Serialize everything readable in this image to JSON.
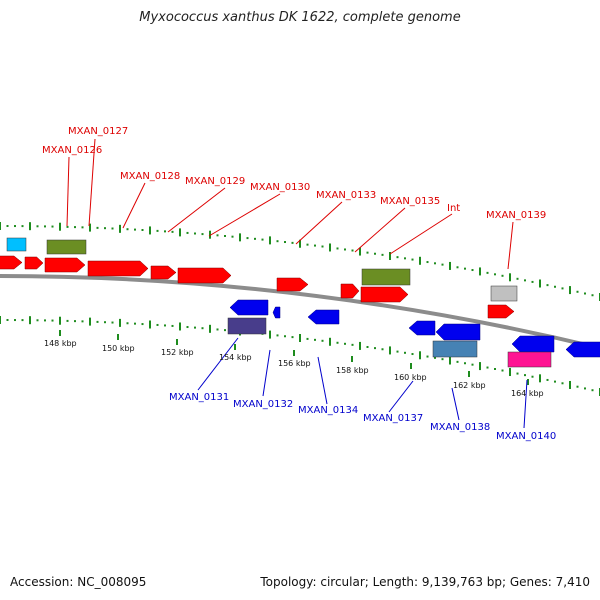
{
  "title": "Myxococcus xanthus DK 1622, complete genome",
  "footer": {
    "accession": "Accession: NC_008095",
    "summary": "Topology: circular; Length: 9,139,763 bp; Genes: 7,410"
  },
  "colors": {
    "forward_gene": "#ff0000",
    "reverse_gene": "#0000ee",
    "forward_label": "#dd0000",
    "reverse_label": "#0000cc",
    "backbone": "#8c8c8c",
    "tick": "#1e8c1e",
    "olive_feature": "#6b8e23",
    "cyan_feature": "#00bfff",
    "gray_feature": "#c0c0c0",
    "slate_feature": "#483d8b",
    "steel_feature": "#4682b4",
    "magenta_feature": "#ff1493"
  },
  "ruler": [
    "148 kbp",
    "150 kbp",
    "152 kbp",
    "154 kbp",
    "156 kbp",
    "158 kbp",
    "160 kbp",
    "162 kbp",
    "164 kbp"
  ],
  "forward_labels": [
    "MXAN_0127",
    "MXAN_0126",
    "MXAN_0128",
    "MXAN_0129",
    "MXAN_0130",
    "MXAN_0133",
    "MXAN_0135",
    "Int",
    "MXAN_0139"
  ],
  "reverse_labels": [
    "MXAN_0131",
    "MXAN_0132",
    "MXAN_0134",
    "MXAN_0137",
    "MXAN_0138",
    "MXAN_0140"
  ]
}
